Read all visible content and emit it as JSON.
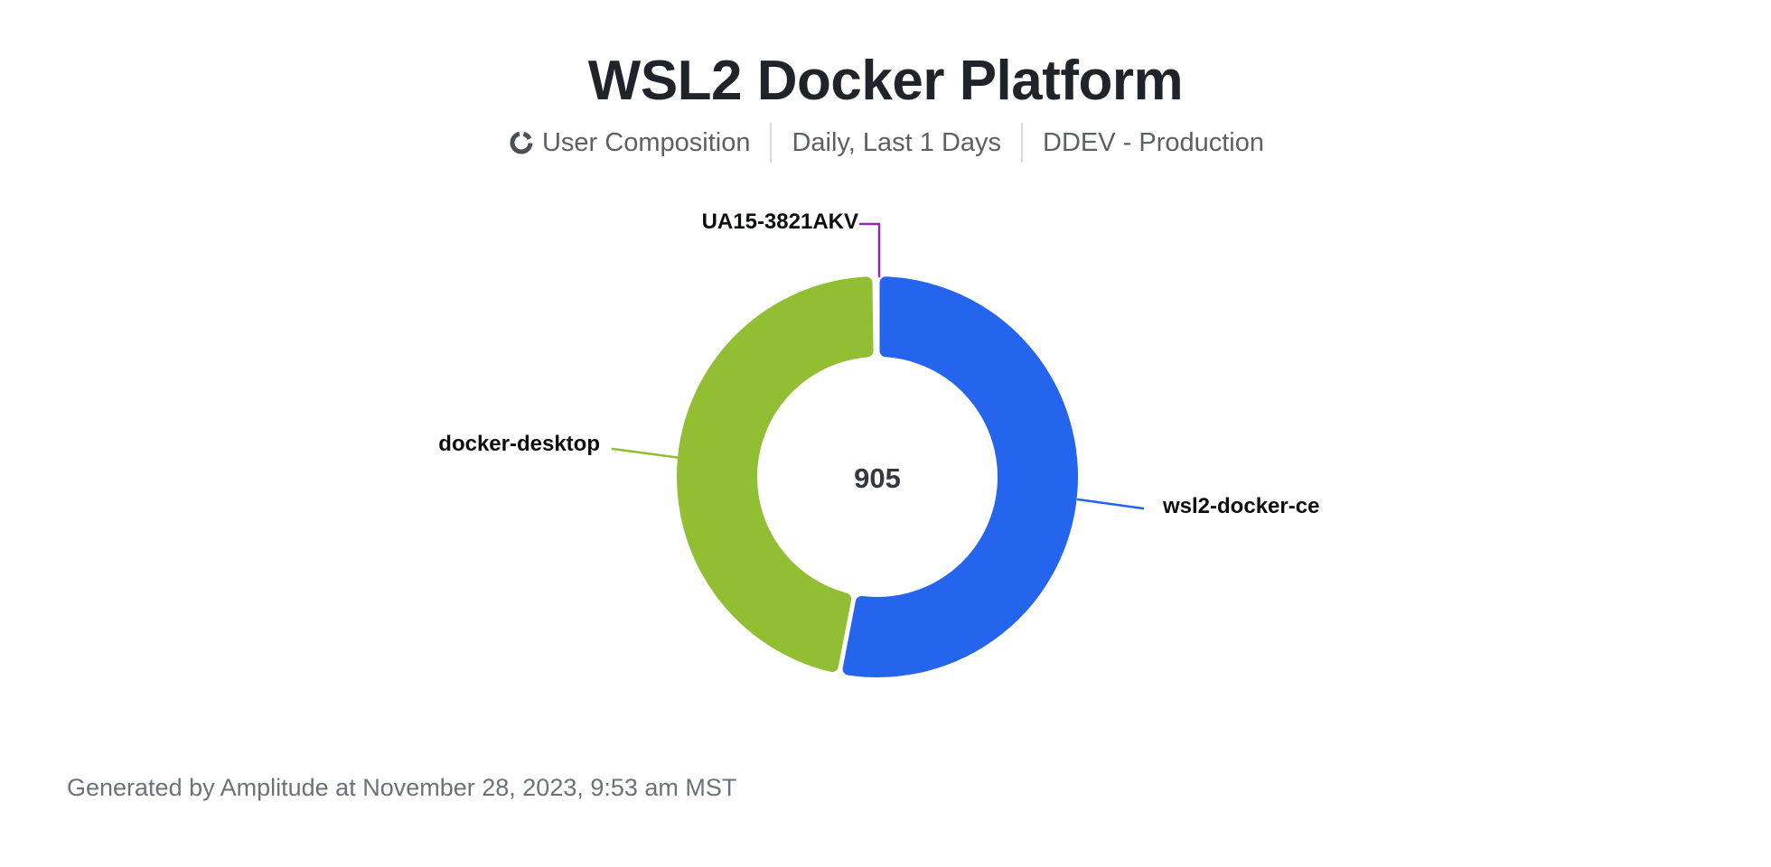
{
  "header": {
    "title": "WSL2 Docker Platform",
    "subtitle": {
      "chart_type_label": "User Composition",
      "date_range_label": "Daily, Last 1 Days",
      "project_label": "DDEV - Production"
    }
  },
  "icons": {
    "chart_type": "donut-chart-icon"
  },
  "chart_data": {
    "type": "pie",
    "variant": "donut",
    "title": "WSL2 Docker Platform",
    "center_total": "905",
    "legend_position": "outside-callout-labels",
    "donut_hole_ratio": 0.6,
    "slices": [
      {
        "label": "wsl2-docker-ce",
        "value": 480,
        "percent": 53.0,
        "color": "#2564ec"
      },
      {
        "label": "docker-desktop",
        "value": 423,
        "percent": 46.8,
        "color": "#91be33"
      },
      {
        "label": "UA15-3821AKV",
        "value": 2,
        "percent": 0.2,
        "color": "#8e2bad"
      }
    ]
  },
  "footer": {
    "text": "Generated by Amplitude at November 28, 2023, 9:53 am MST"
  }
}
